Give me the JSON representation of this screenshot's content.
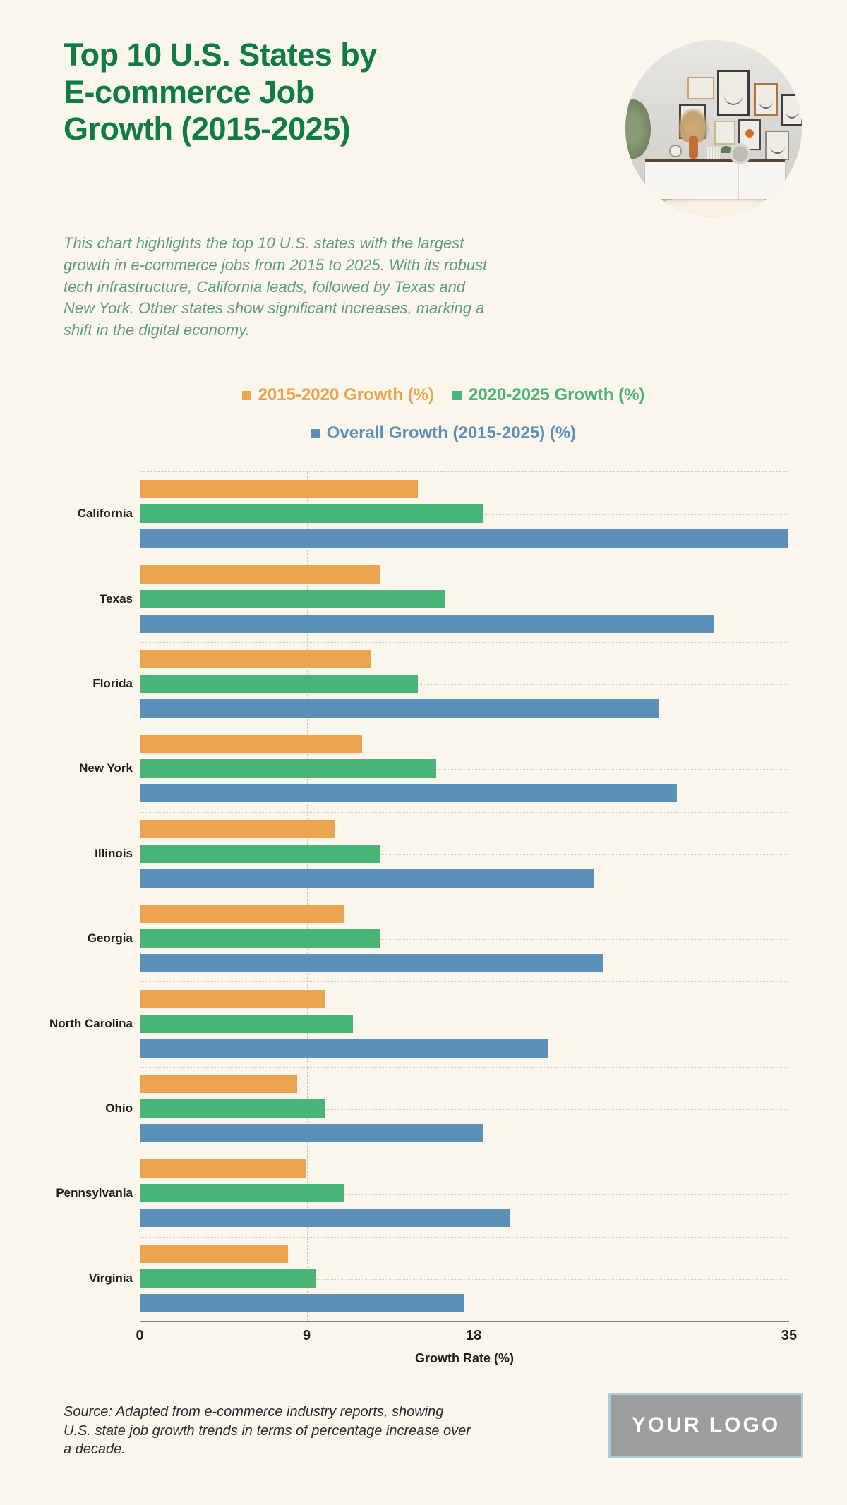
{
  "header": {
    "title": "Top 10 U.S. States by\nE-commerce Job\nGrowth (2015-2025)",
    "title_color": "#117b45"
  },
  "description": {
    "text": "This chart highlights the top 10 U.S. states with the largest\ngrowth in e-commerce jobs from 2015 to 2025. With its robust\ntech infrastructure, California leads, followed by Texas and\nNew York. Other states show significant increases, marking a\nshift in the digital economy.",
    "color": "#5d9c85"
  },
  "legend": {
    "items": [
      {
        "label": "2015-2020 Growth (%)",
        "color": "#eba44f",
        "row": 1
      },
      {
        "label": "2020-2025 Growth (%)",
        "color": "#48b577",
        "row": 1
      },
      {
        "label": "Overall Growth (2015-2025) (%)",
        "color": "#5b90b8",
        "row": 2
      }
    ]
  },
  "chart_data": {
    "type": "bar",
    "orientation": "horizontal",
    "title": "Top 10 U.S. States by E-commerce Job Growth (2015-2025)",
    "categories": [
      "California",
      "Texas",
      "Florida",
      "New York",
      "Illinois",
      "Georgia",
      "North Carolina",
      "Ohio",
      "Pennsylvania",
      "Virginia"
    ],
    "series": [
      {
        "name": "2015-2020 Growth (%)",
        "color": "#eba44f",
        "values": [
          15,
          13,
          12.5,
          12,
          10.5,
          11,
          10,
          8.5,
          9,
          8
        ]
      },
      {
        "name": "2020-2025 Growth (%)",
        "color": "#48b577",
        "values": [
          18.5,
          16.5,
          15,
          16,
          13,
          13,
          11.5,
          10,
          11,
          9.5
        ]
      },
      {
        "name": "Overall Growth (2015-2025) (%)",
        "color": "#5b90b8",
        "values": [
          35,
          31,
          28,
          29,
          24.5,
          25,
          22,
          18.5,
          20,
          17.5
        ]
      }
    ],
    "xlabel": "Growth Rate (%)",
    "xlim": [
      0,
      35
    ],
    "xticks": [
      0,
      9,
      18,
      35
    ],
    "grid": true,
    "legend_position": "top"
  },
  "footer": {
    "source": "Source: Adapted from e-commerce industry reports, showing\nU.S. state job growth trends in terms of percentage increase over\na decade.",
    "logo_text": "YOUR LOGO"
  }
}
